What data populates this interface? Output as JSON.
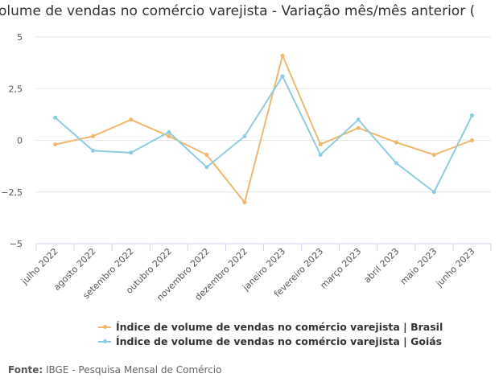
{
  "chart_data": {
    "type": "line",
    "title": "olume de vendas no comércio varejista - Variação mês/mês anterior (",
    "categories": [
      "julho 2022",
      "agosto 2022",
      "setembro 2022",
      "outubro 2022",
      "novembro 2022",
      "dezembro 2022",
      "janeiro 2023",
      "fevereiro 2023",
      "março 2023",
      "abril 2023",
      "maio 2023",
      "junho 2023"
    ],
    "series": [
      {
        "name": "Índice de volume de vendas no comércio varejista | Brasil",
        "color": "#f0b86e",
        "values": [
          -0.2,
          0.2,
          1.0,
          0.2,
          -0.7,
          -3.0,
          4.1,
          -0.2,
          0.6,
          -0.1,
          -0.7,
          0.0
        ]
      },
      {
        "name": "Índice de volume de vendas no comércio varejista | Goiás",
        "color": "#8ecde0",
        "values": [
          1.1,
          -0.5,
          -0.6,
          0.4,
          -1.3,
          0.2,
          3.1,
          -0.7,
          1.0,
          -1.1,
          -2.5,
          1.2
        ]
      }
    ],
    "yticks": [
      "5",
      "2,5",
      "0",
      "−2,5",
      "−5"
    ],
    "ytick_values": [
      5,
      2.5,
      0,
      -2.5,
      -5
    ],
    "ylim": [
      -5,
      5
    ],
    "grid": true,
    "legend_position": "bottom"
  },
  "source": {
    "label": "Fonte:",
    "text": "IBGE - Pesquisa Mensal de Comércio"
  }
}
